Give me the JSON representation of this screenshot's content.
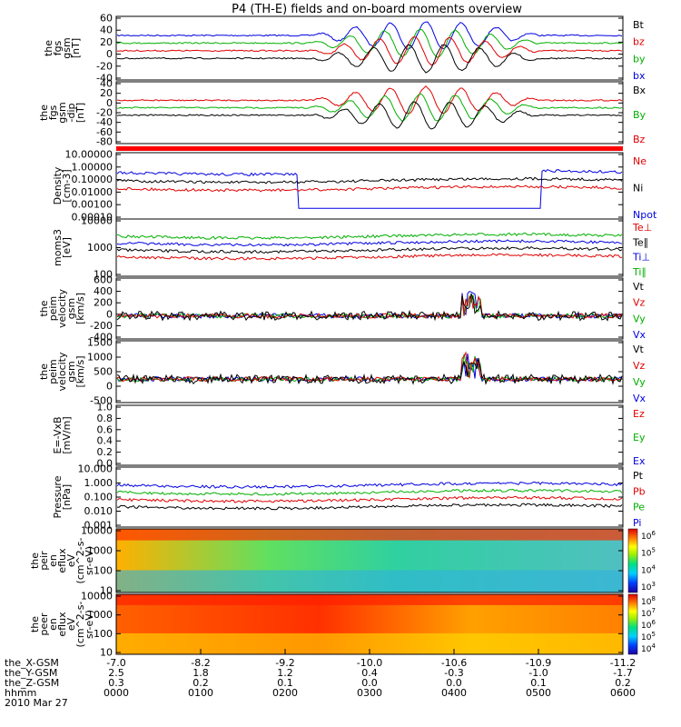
{
  "title": "P4 (TH-E) fields and on-board moments overview",
  "panels": [
    {
      "id": "fgs",
      "ylabel": [
        "the",
        "fgs",
        "gsm",
        "[nT]"
      ],
      "yticks": [
        60,
        40,
        20,
        0,
        -20,
        -40
      ],
      "ylim": [
        -45,
        62
      ],
      "legend": [
        {
          "text": "Bt",
          "color": "#000000"
        },
        {
          "text": "bz",
          "color": "#e00000"
        },
        {
          "text": "by",
          "color": "#00b000"
        },
        {
          "text": "bx",
          "color": "#0000e0"
        }
      ]
    },
    {
      "id": "fgs_dip",
      "ylabel": [
        "the",
        "fgs",
        "gsm",
        "-dip",
        "[nT]"
      ],
      "yticks": [
        40,
        20,
        0,
        -20,
        -40,
        -60,
        -80
      ],
      "ylim": [
        -88,
        42
      ],
      "legend": [
        {
          "text": "Bx",
          "color": "#000000"
        },
        {
          "text": "By",
          "color": "#00b000"
        },
        {
          "text": "Bz",
          "color": "#e00000"
        }
      ]
    },
    {
      "id": "density",
      "ylabel": [
        "Density",
        "[cm-3]"
      ],
      "yticks": [
        "10.00000",
        "1.00000",
        "0.10000",
        "0.01000",
        "0.00100",
        "0.00010"
      ],
      "ylim": [
        4e-05,
        10
      ],
      "legend": [
        {
          "text": "Ne",
          "color": "#e00000"
        },
        {
          "text": "Ni",
          "color": "#000000"
        },
        {
          "text": "Npot",
          "color": "#0000e0"
        }
      ]
    },
    {
      "id": "temp",
      "ylabel": [
        "moms3",
        "[eV]"
      ],
      "yticks": [
        "10000",
        "1000",
        "100"
      ],
      "ylim": [
        100,
        10000
      ],
      "legend": [
        {
          "text": "Te⊥",
          "color": "#e00000"
        },
        {
          "text": "Te∥",
          "color": "#000000"
        },
        {
          "text": "Ti⊥",
          "color": "#0000e0"
        },
        {
          "text": "Ti∥",
          "color": "#00b000"
        }
      ]
    },
    {
      "id": "vel_e",
      "ylabel": [
        "the",
        "peim",
        "velocity",
        "gsm",
        "[km/s]"
      ],
      "yticks": [
        600,
        400,
        200,
        0,
        -200,
        -400
      ],
      "ylim": [
        -420,
        650
      ],
      "legend": [
        {
          "text": "Vt",
          "color": "#000000"
        },
        {
          "text": "Vz",
          "color": "#e00000"
        },
        {
          "text": "Vy",
          "color": "#00b000"
        },
        {
          "text": "Vx",
          "color": "#0000e0"
        }
      ]
    },
    {
      "id": "vel_i",
      "ylabel": [
        "the",
        "peim",
        "velocity",
        "gsm",
        "[km/s]"
      ],
      "yticks": [
        1500,
        1000,
        500,
        0,
        -500
      ],
      "ylim": [
        -700,
        1600
      ],
      "legend": [
        {
          "text": "Vt",
          "color": "#000000"
        },
        {
          "text": "Vz",
          "color": "#e00000"
        },
        {
          "text": "Vy",
          "color": "#00b000"
        },
        {
          "text": "Vx",
          "color": "#0000e0"
        }
      ]
    },
    {
      "id": "efield",
      "ylabel": [
        "E=-VxB",
        "[mV/m]"
      ],
      "yticks": [
        "1.0",
        "0.8",
        "0.6",
        "0.4",
        "0.2",
        "0.0"
      ],
      "ylim": [
        0,
        1
      ],
      "legend": [
        {
          "text": "Ez",
          "color": "#e00000"
        },
        {
          "text": "Ey",
          "color": "#00b000"
        },
        {
          "text": "Ex",
          "color": "#0000e0"
        }
      ]
    },
    {
      "id": "pressure",
      "ylabel": [
        "Pressure",
        "[nPa]"
      ],
      "yticks": [
        "10.000",
        "1.000",
        "0.100",
        "0.010",
        "0.001"
      ],
      "ylim": [
        0.001,
        10
      ],
      "legend": [
        {
          "text": "Pt",
          "color": "#000000"
        },
        {
          "text": "Pb",
          "color": "#e00000"
        },
        {
          "text": "Pe",
          "color": "#00b000"
        },
        {
          "text": "Pi",
          "color": "#0000e0"
        }
      ]
    },
    {
      "id": "spec_i",
      "ylabel": [
        "the",
        "peir",
        "en",
        "eflux",
        "eV",
        "(cm^2-s-",
        "sr-eV)"
      ],
      "yticks": [
        "10000",
        "1000",
        "100",
        "10"
      ],
      "ylim": [
        7,
        20000
      ],
      "colorbar": [
        "10^6",
        "10^5",
        "10^4",
        "10^3"
      ]
    },
    {
      "id": "spec_e",
      "ylabel": [
        "the",
        "peer",
        "en",
        "eflux",
        "eV",
        "(cm^2-s-",
        "sr-eV)"
      ],
      "yticks": [
        "10000",
        "1000",
        "100",
        "10"
      ],
      "ylim": [
        7,
        20000
      ],
      "colorbar": [
        "10^8",
        "10^7",
        "10^6",
        "10^5",
        "10^4"
      ]
    }
  ],
  "xaxis": {
    "rows": [
      {
        "label": "the_X-GSM",
        "values": [
          "-7.0",
          "-8.2",
          "-9.2",
          "-10.0",
          "-10.6",
          "-10.9",
          "-11.2"
        ]
      },
      {
        "label": "the_Y-GSM",
        "values": [
          "2.5",
          "1.8",
          "1.2",
          "0.4",
          "-0.3",
          "-1.0",
          "-1.7"
        ]
      },
      {
        "label": "the_Z-GSM",
        "values": [
          "0.3",
          "0.2",
          "0.1",
          "0.0",
          "0.0",
          "0.1",
          "0.2"
        ]
      },
      {
        "label": "hhmm",
        "values": [
          "0000",
          "0100",
          "0200",
          "0300",
          "0400",
          "0500",
          "0600"
        ]
      }
    ],
    "date": "2010 Mar 27"
  },
  "chart_data": {
    "type": "line",
    "x": [
      "0000",
      "0100",
      "0200",
      "0300",
      "0400",
      "0500",
      "0600"
    ],
    "series": [
      {
        "name": "Bt",
        "values": [
          45,
          38,
          30,
          25,
          30,
          40,
          40
        ]
      },
      {
        "name": "bz",
        "values": [
          40,
          33,
          25,
          10,
          15,
          38,
          38
        ]
      },
      {
        "name": "by",
        "values": [
          5,
          3,
          0,
          -10,
          0,
          10,
          12
        ]
      },
      {
        "name": "bx",
        "values": [
          2,
          2,
          2,
          -20,
          -10,
          5,
          5
        ]
      },
      {
        "name": "Ni",
        "values": [
          0.3,
          0.25,
          0.25,
          0.2,
          0.15,
          0.2,
          0.2
        ]
      },
      {
        "name": "Npot",
        "values": [
          0.3,
          0.25,
          0.0002,
          0.0002,
          0.0002,
          0.2,
          0.2
        ]
      },
      {
        "name": "Pt",
        "values": [
          1.2,
          0.8,
          0.6,
          0.4,
          0.5,
          0.5,
          0.5
        ]
      },
      {
        "name": "Pb",
        "values": [
          0.8,
          0.5,
          0.4,
          0.35,
          0.45,
          0.5,
          0.5
        ]
      },
      {
        "name": "Pe",
        "values": [
          0.4,
          0.15,
          0.08,
          0.05,
          0.02,
          0.015,
          0.01
        ]
      },
      {
        "name": "Pi",
        "values": [
          0.5,
          0.3,
          0.2,
          0.15,
          0.08,
          0.06,
          0.05
        ]
      }
    ]
  }
}
